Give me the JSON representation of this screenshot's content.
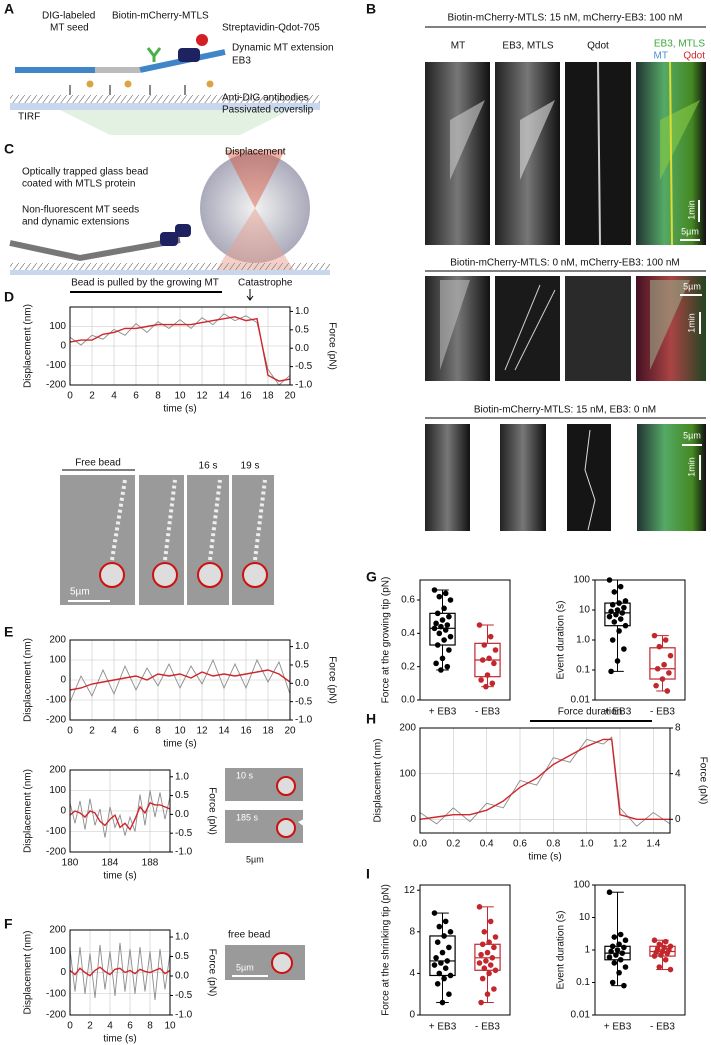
{
  "panel_a": {
    "letter": "A",
    "seed_label": [
      "DIG-labeled",
      "MT seed"
    ],
    "mtls": "Biotin-mCherry-MTLS",
    "qdot": "Streptavidin-Qdot-705",
    "extension": "Dynamic MT extension",
    "eb3": "EB3",
    "antibodies": "Anti-DIG antibodies",
    "coverslip": "Passivated coverslip",
    "tirf": "TIRF"
  },
  "panel_b": {
    "letter": "B",
    "rows": [
      {
        "title": "Biotin-mCherry-MTLS: 15 nM, mCherry-EB3: 100 nM",
        "columns": [
          "MT",
          "EB3, MTLS",
          "Qdot"
        ],
        "merge_labels": [
          "EB3, MTLS",
          "MT",
          "Qdot"
        ],
        "time_scale": "1min",
        "space_scale": "5µm"
      },
      {
        "title": "Biotin-mCherry-MTLS: 0 nM, mCherry-EB3: 100 nM",
        "time_scale": "1min",
        "space_scale": "5µm"
      },
      {
        "title": "Biotin-mCherry-MTLS: 15 nM, EB3: 0 nM",
        "time_scale": "1min",
        "space_scale": "5µm"
      }
    ]
  },
  "panel_c": {
    "letter": "C",
    "displacement": "Displacement",
    "bead_label": [
      "Optically trapped glass bead",
      "coated with MTLS protein"
    ],
    "seed_label": [
      "Non-fluorescent MT seeds",
      "and dynamic extensions"
    ]
  },
  "panel_d": {
    "letter": "D",
    "annotation": "Bead is pulled by the growing MT",
    "catastrophe": "Catastrophe",
    "chart": {
      "type": "line",
      "xlabel": "time (s)",
      "ylabel": "Displacement (nm)",
      "y2label": "Force (pN)",
      "grid": true,
      "xlim": [
        0,
        20
      ],
      "xticks": [
        0,
        2,
        4,
        6,
        8,
        10,
        12,
        14,
        16,
        18,
        20
      ],
      "ylim": [
        -200,
        200
      ],
      "yticks": [
        -200,
        -100,
        0,
        100
      ],
      "y2lim": [
        -1,
        1.12
      ],
      "y2ticks": [
        {
          "value": -1,
          "label": "-1.0"
        },
        -0.5,
        {
          "value": 0,
          "label": "0.0"
        },
        0.5,
        {
          "value": 1,
          "label": "1.0"
        }
      ],
      "x": [
        0,
        1,
        2,
        3,
        4,
        5,
        6,
        7,
        8,
        9,
        10,
        11,
        12,
        13,
        14,
        15,
        16,
        17,
        18,
        19,
        20
      ],
      "series": [
        {
          "color": "#8c8c8c",
          "values": [
            45,
            5,
            55,
            35,
            85,
            55,
            115,
            70,
            125,
            90,
            135,
            90,
            145,
            110,
            165,
            130,
            155,
            120,
            -120,
            -200,
            -150
          ]
        },
        {
          "color": "#d0262c",
          "values": [
            20,
            30,
            30,
            60,
            70,
            90,
            90,
            100,
            110,
            110,
            110,
            110,
            120,
            130,
            140,
            150,
            130,
            140,
            -150,
            -180,
            -170
          ]
        }
      ]
    },
    "images": [
      "Free bead",
      "16 s",
      "19 s"
    ],
    "scale": "5µm"
  },
  "panel_e": {
    "letter": "E",
    "chart": {
      "type": "line",
      "xlabel": "time (s)",
      "ylabel": "Displacement (nm)",
      "y2label": "Force (pN)",
      "grid": true,
      "xlim": [
        0,
        20
      ],
      "xticks": [
        0,
        2,
        4,
        6,
        8,
        10,
        12,
        14,
        16,
        18,
        20
      ],
      "ylim": [
        -200,
        200
      ],
      "yticks": [
        -200,
        -100,
        0,
        100,
        200
      ],
      "y2lim": [
        -1,
        1.18
      ],
      "y2ticks": [
        {
          "value": -1,
          "label": "-1.0"
        },
        -0.5,
        {
          "value": 0,
          "label": "0.0"
        },
        0.5,
        {
          "value": 1,
          "label": "1.0"
        }
      ],
      "x": [
        0,
        1,
        2,
        3,
        4,
        5,
        6,
        7,
        8,
        9,
        10,
        11,
        12,
        13,
        14,
        15,
        16,
        17,
        18,
        19,
        20
      ],
      "series": [
        {
          "color": "#8c8c8c",
          "values": [
            -110,
            20,
            -80,
            50,
            -70,
            70,
            -50,
            60,
            -30,
            80,
            -40,
            70,
            -20,
            100,
            -40,
            80,
            -40,
            100,
            -10,
            90,
            -70
          ]
        },
        {
          "color": "#d0262c",
          "values": [
            -50,
            -40,
            -20,
            -10,
            0,
            10,
            20,
            0,
            30,
            20,
            30,
            10,
            40,
            20,
            30,
            20,
            30,
            40,
            50,
            30,
            -10
          ]
        }
      ]
    },
    "chart_zoom": {
      "type": "line",
      "xlabel": "time (s)",
      "ylabel": "Displacement (nm)",
      "y2label": "Force (pN)",
      "grid": true,
      "xlim": [
        180,
        190
      ],
      "xticks": [
        180,
        184,
        188
      ],
      "ylim": [
        -200,
        200
      ],
      "yticks": [
        -200,
        -100,
        0,
        100,
        200
      ],
      "y2lim": [
        -1,
        1.18
      ],
      "y2ticks": [
        {
          "value": -1,
          "label": "-1.0"
        },
        -0.5,
        {
          "value": 0,
          "label": "0.0"
        },
        0.5,
        {
          "value": 1,
          "label": "1.0"
        }
      ],
      "x": [
        180,
        180.5,
        181,
        181.5,
        182,
        182.5,
        183,
        183.5,
        184,
        184.5,
        185,
        185.5,
        186,
        186.5,
        187,
        187.5,
        188,
        188.5,
        189,
        189.5,
        190
      ],
      "series": [
        {
          "color": "#8c8c8c",
          "values": [
            40,
            -60,
            50,
            -90,
            60,
            -70,
            10,
            -130,
            20,
            -80,
            -20,
            -120,
            -30,
            -100,
            80,
            -70,
            100,
            -30,
            90,
            -40,
            70
          ]
        },
        {
          "color": "#d0262c",
          "values": [
            -20,
            0,
            -10,
            -30,
            0,
            -10,
            -50,
            -70,
            -40,
            -20,
            -80,
            -60,
            -90,
            -40,
            20,
            -10,
            40,
            30,
            30,
            20,
            10
          ]
        }
      ]
    },
    "images": [
      "10 s",
      "185 s"
    ],
    "scale": "5µm"
  },
  "panel_f": {
    "letter": "F",
    "chart": {
      "type": "line",
      "xlabel": "time (s)",
      "ylabel": "Displacement (nm)",
      "y2label": "Force (pN)",
      "grid": true,
      "xlim": [
        0,
        10
      ],
      "xticks": [
        0,
        2,
        4,
        6,
        8,
        10
      ],
      "ylim": [
        -200,
        200
      ],
      "yticks": [
        -200,
        -100,
        0,
        100,
        200
      ],
      "y2lim": [
        -1,
        1.18
      ],
      "y2ticks": [
        {
          "value": -1,
          "label": "-1.0"
        },
        -0.5,
        {
          "value": 0,
          "label": "0.0"
        },
        0.5,
        {
          "value": 1,
          "label": "1.0"
        }
      ],
      "x": [
        0,
        0.5,
        1,
        1.5,
        2,
        2.5,
        3,
        3.5,
        4,
        4.5,
        5,
        5.5,
        6,
        6.5,
        7,
        7.5,
        8,
        8.5,
        9,
        9.5,
        10
      ],
      "series": [
        {
          "color": "#8c8c8c",
          "values": [
            110,
            -90,
            120,
            -100,
            90,
            -120,
            130,
            -80,
            100,
            -110,
            140,
            -90,
            110,
            -100,
            120,
            -90,
            100,
            -130,
            110,
            -80,
            90
          ]
        },
        {
          "color": "#d0262c",
          "values": [
            10,
            -10,
            20,
            0,
            -15,
            10,
            25,
            5,
            -10,
            15,
            20,
            0,
            10,
            -5,
            15,
            5,
            0,
            10,
            20,
            -5,
            10
          ]
        }
      ]
    },
    "image": "free bead",
    "scale": "5µm"
  },
  "panel_g": {
    "letter": "G",
    "force": {
      "type": "box",
      "ylabel": "Force at the growing tip (pN)",
      "categories": [
        "+ EB3",
        "- EB3"
      ],
      "ylim": [
        0,
        0.72
      ],
      "yticks": [
        {
          "value": 0,
          "label": "0.0"
        },
        0.2,
        0.4,
        0.6
      ],
      "log": false,
      "boxes": [
        {
          "color": "#000000",
          "min": 0.18,
          "q1": 0.33,
          "median": 0.43,
          "q3": 0.52,
          "max": 0.66,
          "points": [
            0.66,
            0.64,
            0.62,
            0.6,
            0.55,
            0.52,
            0.5,
            0.48,
            0.46,
            0.45,
            0.44,
            0.43,
            0.42,
            0.4,
            0.38,
            0.36,
            0.33,
            0.3,
            0.25,
            0.22,
            0.2,
            0.18
          ]
        },
        {
          "color": "#c1272d",
          "min": 0.08,
          "q1": 0.14,
          "median": 0.24,
          "q3": 0.34,
          "max": 0.45,
          "points": [
            0.45,
            0.38,
            0.33,
            0.3,
            0.25,
            0.24,
            0.22,
            0.15,
            0.12,
            0.1,
            0.08
          ]
        }
      ]
    },
    "duration": {
      "type": "box",
      "ylabel": "Event duration (s)",
      "categories": [
        "+ EB3",
        "- EB3"
      ],
      "ylim": [
        0.01,
        100
      ],
      "yticks": [
        0.01,
        0.1,
        {
          "value": 1,
          "label": "1.0"
        },
        10,
        100
      ],
      "log": true,
      "boxes": [
        {
          "color": "#000000",
          "min": 0.09,
          "q1": 3,
          "median": 8,
          "q3": 17,
          "max": 100,
          "points": [
            100,
            60,
            40,
            20,
            17,
            15,
            12,
            10,
            9,
            8,
            7,
            6,
            5,
            4,
            3,
            2,
            1,
            0.5,
            0.2,
            0.09
          ]
        },
        {
          "color": "#c1272d",
          "min": 0.02,
          "q1": 0.05,
          "median": 0.11,
          "q3": 0.55,
          "max": 1.4,
          "points": [
            1.4,
            1,
            0.6,
            0.3,
            0.15,
            0.11,
            0.08,
            0.05,
            0.03,
            0.02
          ]
        }
      ]
    }
  },
  "panel_h": {
    "letter": "H",
    "annotation": "Force duration",
    "chart": {
      "type": "line",
      "xlabel": "time (s)",
      "ylabel": "Displacement (nm)",
      "y2label": "Force (pN)",
      "grid": true,
      "xlim": [
        0,
        1.5
      ],
      "xticks": [
        {
          "value": 0,
          "label": "0.0"
        },
        0.2,
        0.4,
        0.6,
        0.8,
        {
          "value": 1,
          "label": "1.0"
        },
        1.2,
        1.4
      ],
      "ylim": [
        -30,
        200
      ],
      "yticks": [
        0,
        100,
        200
      ],
      "y2lim": [
        -1.2,
        8
      ],
      "y2ticks": [
        0,
        4,
        8
      ],
      "x": [
        0,
        0.1,
        0.2,
        0.3,
        0.4,
        0.5,
        0.6,
        0.7,
        0.8,
        0.9,
        1.0,
        1.1,
        1.15,
        1.2,
        1.3,
        1.4,
        1.5
      ],
      "series": [
        {
          "color": "#8c8c8c",
          "values": [
            15,
            -10,
            25,
            -5,
            35,
            25,
            85,
            75,
            135,
            125,
            175,
            165,
            180,
            25,
            -15,
            15,
            -10
          ]
        },
        {
          "color": "#d0262c",
          "values": [
            0,
            5,
            10,
            10,
            20,
            40,
            70,
            90,
            120,
            140,
            160,
            175,
            175,
            10,
            0,
            0,
            0
          ]
        }
      ]
    }
  },
  "panel_i": {
    "letter": "I",
    "force": {
      "type": "box",
      "ylabel": "Force at the shrinking tip (pN)",
      "categories": [
        "+ EB3",
        "- EB3"
      ],
      "ylim": [
        0,
        12.5
      ],
      "yticks": [
        0,
        4,
        8,
        12
      ],
      "log": false,
      "boxes": [
        {
          "color": "#000000",
          "min": 1.2,
          "q1": 3.8,
          "median": 5.2,
          "q3": 7.6,
          "max": 9.8,
          "points": [
            9.8,
            9,
            8.5,
            8,
            7.6,
            7,
            6.5,
            6,
            5.5,
            5.2,
            5,
            4.8,
            4.5,
            4,
            3.8,
            3.5,
            3,
            2,
            1.2
          ]
        },
        {
          "color": "#c1272d",
          "min": 1.2,
          "q1": 4.3,
          "median": 5.5,
          "q3": 6.8,
          "max": 10.4,
          "points": [
            10.4,
            9,
            8,
            7.5,
            7,
            6.8,
            6.5,
            6,
            5.8,
            5.5,
            5.2,
            5,
            4.8,
            4.5,
            4.3,
            4,
            3.5,
            2.5,
            2,
            1.2
          ]
        }
      ]
    },
    "duration": {
      "type": "box",
      "ylabel": "Event duration (s)",
      "categories": [
        "+ EB3",
        "- EB3"
      ],
      "ylim": [
        0.01,
        100
      ],
      "yticks": [
        0.01,
        0.1,
        1,
        10,
        100
      ],
      "log": true,
      "boxes": [
        {
          "color": "#000000",
          "min": 0.08,
          "q1": 0.5,
          "median": 0.8,
          "q3": 1.3,
          "max": 60,
          "points": [
            60,
            3,
            2.5,
            2,
            1.5,
            1.3,
            1.2,
            1,
            0.9,
            0.8,
            0.7,
            0.6,
            0.5,
            0.4,
            0.3,
            0.2,
            0.1,
            0.08
          ]
        },
        {
          "color": "#c1272d",
          "min": 0.25,
          "q1": 0.65,
          "median": 0.9,
          "q3": 1.3,
          "max": 2,
          "points": [
            2,
            1.8,
            1.5,
            1.3,
            1.2,
            1.1,
            1,
            0.9,
            0.85,
            0.8,
            0.7,
            0.65,
            0.5,
            0.3,
            0.25
          ]
        }
      ]
    }
  }
}
